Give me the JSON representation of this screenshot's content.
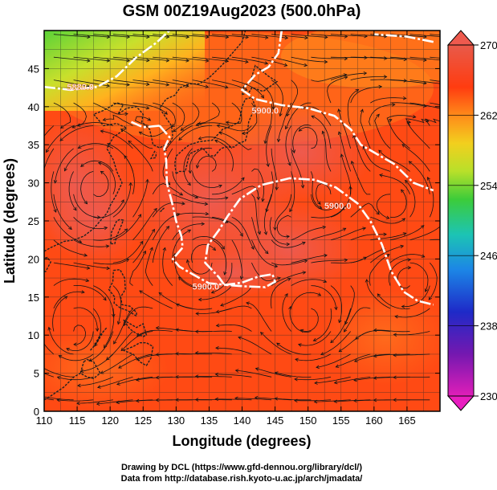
{
  "title": "GSM 00Z19Aug2023 (500.0hPa)",
  "xlabel": "Longitude (degrees)",
  "ylabel": "Latitude  (degrees)",
  "x_ticks": [
    "110",
    "115",
    "120",
    "125",
    "130",
    "135",
    "140",
    "145",
    "150",
    "155",
    "160",
    "165"
  ],
  "y_ticks": [
    "0",
    "5",
    "10",
    "15",
    "20",
    "25",
    "30",
    "35",
    "40",
    "45"
  ],
  "colorbar": {
    "ticks": [
      "270",
      "262",
      "254",
      "246",
      "238",
      "230"
    ],
    "colors": [
      "#e05050",
      "#ff4a16",
      "#ff9a1a",
      "#f4d21e",
      "#9ce02a",
      "#2ec83c",
      "#18c0b8",
      "#1e7ee6",
      "#2028c8",
      "#7a1ab4",
      "#d81eb4"
    ]
  },
  "contours": [
    {
      "label": "5900.0",
      "label_at": [
        143.5,
        39.5
      ]
    },
    {
      "label": "5900.0",
      "label_at": [
        154.5,
        27.0
      ]
    },
    {
      "label": "5900.0",
      "label_at": [
        134.5,
        16.4
      ]
    },
    {
      "label": "5880.0",
      "label_at": [
        115.5,
        42.6
      ]
    }
  ],
  "footer": {
    "line1": "Drawing by DCL (https://www.gfd-dennou.org/library/dcl/)",
    "line2": "Data from http://database.rish.kyoto-u.ac.jp/arch/jmadata/"
  }
}
